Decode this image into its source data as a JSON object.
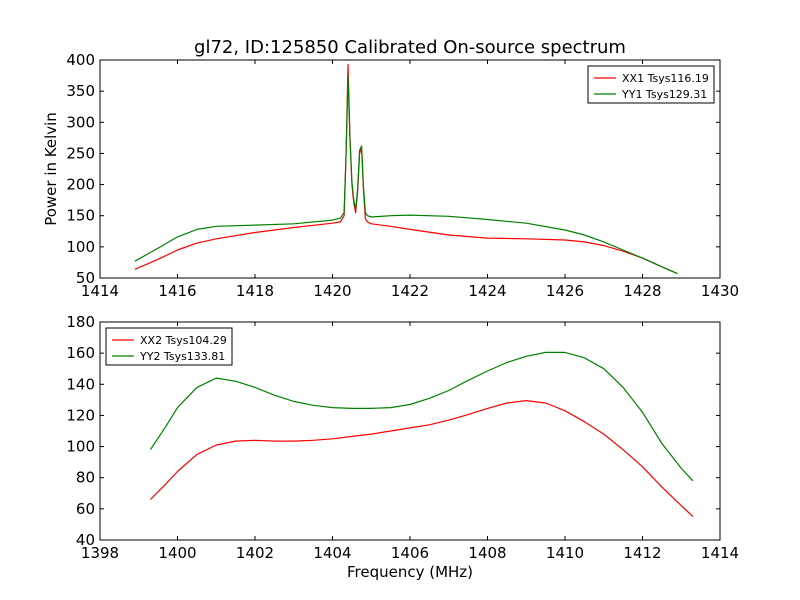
{
  "figure": {
    "title": "gl72, ID:125850 Calibrated On-source spectrum"
  },
  "chart_data": [
    {
      "type": "line",
      "title": "gl72, ID:125850 Calibrated On-source spectrum",
      "xlabel": "",
      "ylabel": "Power in Kelvin",
      "xlim": [
        1414,
        1430
      ],
      "ylim": [
        50,
        400
      ],
      "xticks": [
        "1414",
        "1416",
        "1418",
        "1420",
        "1422",
        "1424",
        "1426",
        "1428",
        "1430"
      ],
      "yticks": [
        "50",
        "100",
        "150",
        "200",
        "250",
        "300",
        "350",
        "400"
      ],
      "grid": false,
      "legend": "top-right",
      "series": [
        {
          "name": "XX1 Tsys116.19",
          "color": "#ff0000",
          "x": [
            1414.9,
            1415.5,
            1416.0,
            1416.5,
            1417.0,
            1418.0,
            1419.0,
            1420.0,
            1420.2,
            1420.3,
            1420.35,
            1420.4,
            1420.45,
            1420.5,
            1420.55,
            1420.6,
            1420.65,
            1420.7,
            1420.75,
            1420.8,
            1420.85,
            1420.9,
            1421.0,
            1421.5,
            1422.0,
            1423.0,
            1424.0,
            1425.0,
            1426.0,
            1426.5,
            1427.0,
            1427.5,
            1428.0,
            1428.5,
            1428.9
          ],
          "values": [
            64,
            80,
            95,
            106,
            113,
            123,
            131,
            138,
            140,
            150,
            250,
            393,
            280,
            200,
            170,
            155,
            190,
            250,
            258,
            190,
            145,
            140,
            137,
            133,
            128,
            119,
            114,
            113,
            111,
            108,
            102,
            93,
            82,
            68,
            57
          ]
        },
        {
          "name": "YY1 Tsys129.31",
          "color": "#008000",
          "x": [
            1414.9,
            1415.5,
            1416.0,
            1416.5,
            1417.0,
            1418.0,
            1419.0,
            1420.0,
            1420.2,
            1420.3,
            1420.35,
            1420.4,
            1420.45,
            1420.5,
            1420.55,
            1420.6,
            1420.65,
            1420.7,
            1420.75,
            1420.8,
            1420.85,
            1420.9,
            1421.0,
            1421.5,
            1422.0,
            1423.0,
            1424.0,
            1425.0,
            1426.0,
            1426.5,
            1427.0,
            1427.5,
            1428.0,
            1428.5,
            1428.9
          ],
          "values": [
            77,
            98,
            116,
            128,
            133,
            135,
            137,
            143,
            146,
            155,
            250,
            375,
            275,
            205,
            175,
            160,
            195,
            255,
            262,
            195,
            155,
            150,
            148,
            150,
            151,
            149,
            144,
            138,
            127,
            119,
            108,
            95,
            82,
            68,
            57
          ]
        }
      ]
    },
    {
      "type": "line",
      "title": "",
      "xlabel": "Frequency (MHz)",
      "ylabel": "",
      "xlim": [
        1398,
        1414
      ],
      "ylim": [
        40,
        180
      ],
      "xticks": [
        "1398",
        "1400",
        "1402",
        "1404",
        "1406",
        "1408",
        "1410",
        "1412",
        "1414"
      ],
      "yticks": [
        "40",
        "60",
        "80",
        "100",
        "120",
        "140",
        "160",
        "180"
      ],
      "grid": false,
      "legend": "top-left",
      "series": [
        {
          "name": "XX2 Tsys104.29",
          "color": "#ff0000",
          "x": [
            1399.3,
            1399.7,
            1400.0,
            1400.5,
            1401.0,
            1401.5,
            1402.0,
            1402.5,
            1403.0,
            1403.5,
            1404.0,
            1404.5,
            1405.0,
            1405.5,
            1406.0,
            1406.5,
            1407.0,
            1407.5,
            1408.0,
            1408.5,
            1409.0,
            1409.5,
            1410.0,
            1410.5,
            1411.0,
            1411.5,
            1412.0,
            1412.5,
            1413.0,
            1413.3
          ],
          "values": [
            66,
            76,
            84,
            95,
            101,
            103.5,
            104,
            103.5,
            103.5,
            104,
            105,
            106.5,
            108,
            110,
            112,
            114,
            117,
            120.5,
            124.5,
            128,
            129.5,
            128,
            123,
            116,
            108,
            98,
            87,
            74,
            62,
            55
          ]
        },
        {
          "name": "YY2 Tsys133.81",
          "color": "#008000",
          "x": [
            1399.3,
            1399.7,
            1400.0,
            1400.5,
            1401.0,
            1401.5,
            1402.0,
            1402.5,
            1403.0,
            1403.5,
            1404.0,
            1404.5,
            1405.0,
            1405.5,
            1406.0,
            1406.5,
            1407.0,
            1407.5,
            1408.0,
            1408.5,
            1409.0,
            1409.5,
            1410.0,
            1410.5,
            1411.0,
            1411.5,
            1412.0,
            1412.5,
            1413.0,
            1413.3
          ],
          "values": [
            98,
            113,
            125,
            138,
            144,
            142,
            138,
            133,
            129,
            126.5,
            125,
            124.5,
            124.5,
            125,
            127,
            131,
            136,
            142.5,
            148.5,
            154,
            158,
            160.5,
            160.5,
            157,
            150,
            138,
            122,
            102,
            86,
            78
          ]
        }
      ]
    }
  ]
}
